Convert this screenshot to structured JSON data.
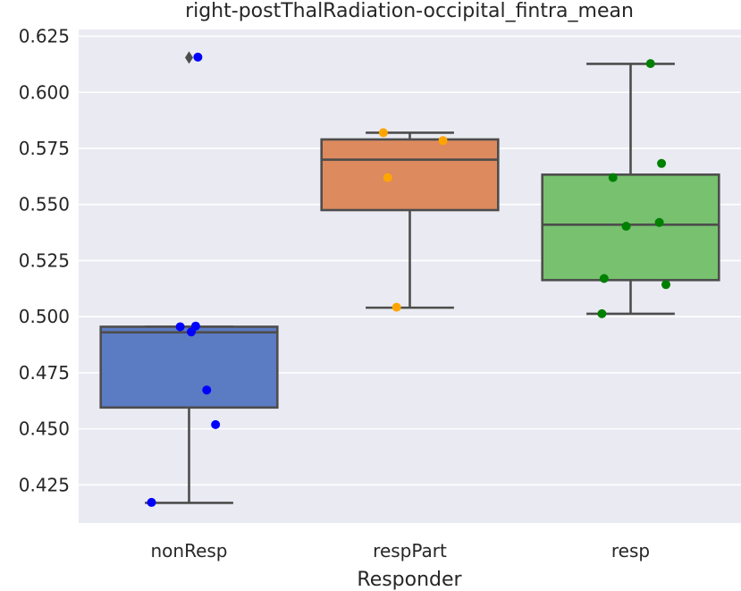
{
  "chart_data": {
    "type": "box",
    "title": "right-postThalRadiation-occipital_fintra_mean",
    "xlabel": "Responder",
    "ylabel": "",
    "ylim": [
      0.408,
      0.628
    ],
    "yticks": [
      0.425,
      0.45,
      0.475,
      0.5,
      0.525,
      0.55,
      0.575,
      0.6,
      0.625
    ],
    "ytick_labels": [
      "0.425",
      "0.450",
      "0.475",
      "0.500",
      "0.525",
      "0.550",
      "0.575",
      "0.600",
      "0.625"
    ],
    "grid": true,
    "categories": [
      "nonResp",
      "respPart",
      "resp"
    ],
    "boxes": [
      {
        "category": "nonResp",
        "color": "#5b7bc2",
        "q1": 0.4595,
        "median": 0.493,
        "q3": 0.4955,
        "whisker_low": 0.417,
        "whisker_high": 0.4955,
        "outliers": [
          0.6155
        ],
        "points_color": "#0000ff",
        "points": [
          {
            "offset": 0.04,
            "y": 0.6157
          },
          {
            "offset": -0.04,
            "y": 0.4955
          },
          {
            "offset": 0.03,
            "y": 0.4958
          },
          {
            "offset": 0.01,
            "y": 0.4932
          },
          {
            "offset": 0.08,
            "y": 0.4673
          },
          {
            "offset": 0.12,
            "y": 0.4519
          },
          {
            "offset": -0.17,
            "y": 0.4172
          }
        ]
      },
      {
        "category": "respPart",
        "color": "#dd8a5f",
        "q1": 0.5475,
        "median": 0.57,
        "q3": 0.579,
        "whisker_low": 0.504,
        "whisker_high": 0.582,
        "outliers": [],
        "points_color": "#ffa500",
        "points": [
          {
            "offset": -0.12,
            "y": 0.582
          },
          {
            "offset": 0.15,
            "y": 0.5785
          },
          {
            "offset": -0.1,
            "y": 0.562
          },
          {
            "offset": -0.06,
            "y": 0.5042
          }
        ]
      },
      {
        "category": "resp",
        "color": "#77c16f",
        "q1": 0.5163,
        "median": 0.541,
        "q3": 0.5633,
        "whisker_low": 0.5013,
        "whisker_high": 0.6127,
        "outliers": [],
        "points_color": "#008000",
        "points": [
          {
            "offset": 0.09,
            "y": 0.6128
          },
          {
            "offset": 0.14,
            "y": 0.5683
          },
          {
            "offset": -0.08,
            "y": 0.562
          },
          {
            "offset": 0.13,
            "y": 0.542
          },
          {
            "offset": -0.02,
            "y": 0.5403
          },
          {
            "offset": -0.12,
            "y": 0.517
          },
          {
            "offset": 0.16,
            "y": 0.5143
          },
          {
            "offset": -0.13,
            "y": 0.5013
          }
        ]
      }
    ]
  }
}
